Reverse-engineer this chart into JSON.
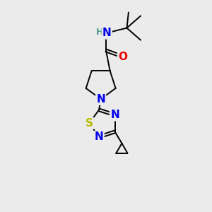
{
  "bg_color": "#ebebeb",
  "atom_colors": {
    "C": "#000000",
    "N": "#0000ee",
    "O": "#ee0000",
    "S": "#bbbb00",
    "H": "#4a9a8a"
  },
  "bond_lw": 1.4,
  "font_size_atom": 11,
  "font_size_small": 9,
  "xlim": [
    0,
    10
  ],
  "ylim": [
    0,
    12
  ]
}
